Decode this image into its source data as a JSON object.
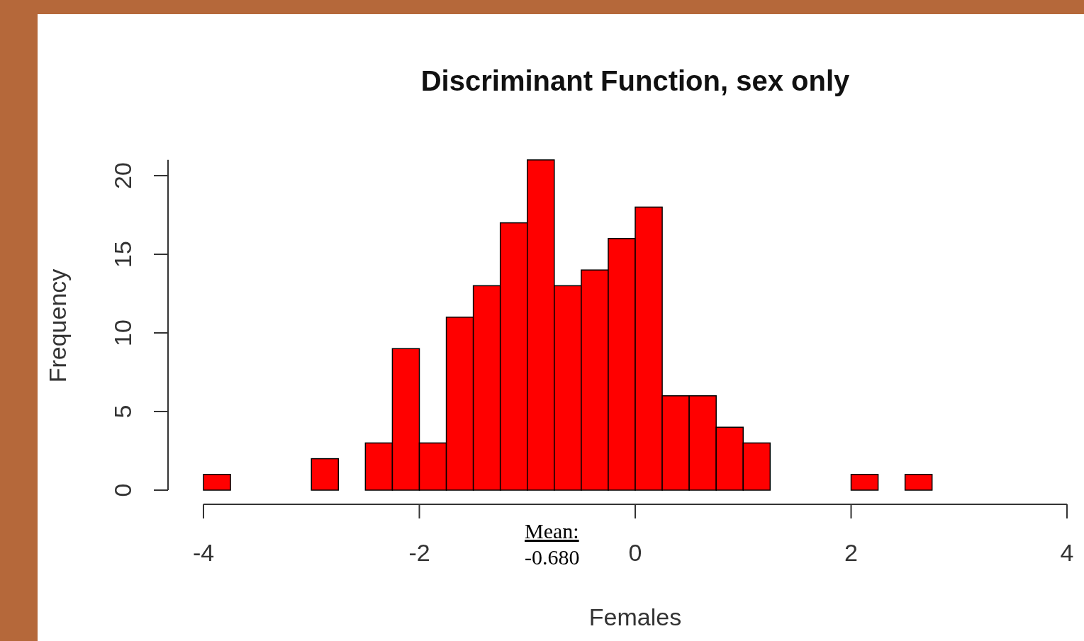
{
  "chart_data": {
    "type": "histogram",
    "title": "Discriminant Function, sex only",
    "xlabel": "Females",
    "ylabel": "Frequency",
    "bins": [
      -4,
      -3.75,
      -3.5,
      -3.25,
      -3,
      -2.75,
      -2.5,
      -2.25,
      -2,
      -1.75,
      -1.5,
      -1.25,
      -1,
      -0.75,
      -0.5,
      -0.25,
      0,
      0.25,
      0.5,
      0.75,
      1,
      1.25,
      1.5,
      1.75,
      2,
      2.25,
      2.5,
      2.75,
      3,
      3.25,
      3.5,
      3.75,
      4
    ],
    "values": [
      1,
      0,
      0,
      0,
      2,
      0,
      3,
      9,
      3,
      11,
      13,
      17,
      21,
      13,
      14,
      16,
      18,
      6,
      6,
      4,
      3,
      0,
      0,
      0,
      1,
      0,
      1,
      0,
      0,
      0,
      0,
      0
    ],
    "color": "#ff0000",
    "xlim": [
      -4,
      4
    ],
    "xticks": [
      -4,
      -2,
      0,
      2,
      4
    ],
    "ylim": [
      0,
      21
    ],
    "yticks": [
      0,
      5,
      10,
      15,
      20
    ],
    "grid": false,
    "annotations": [
      "Mean:",
      "-0.680"
    ]
  }
}
